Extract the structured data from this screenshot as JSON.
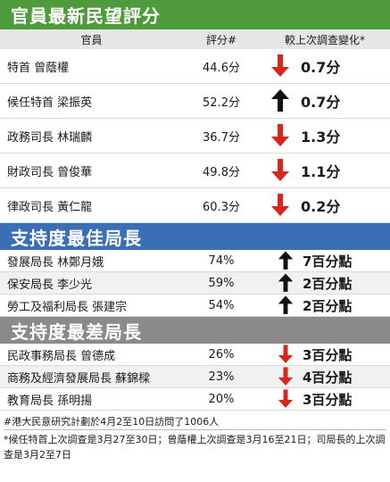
{
  "title": "官員最新民望評分",
  "columns": {
    "name": "官員",
    "score": "評分#",
    "change": "較上次調查變化*"
  },
  "officials": [
    {
      "name": "特首 曾蔭權",
      "score": "44.6分",
      "dir": "down",
      "change": "0.7分"
    },
    {
      "name": "候任特首 梁振英",
      "score": "52.2分",
      "dir": "up",
      "change": "0.7分"
    },
    {
      "name": "政務司長 林瑞麟",
      "score": "36.7分",
      "dir": "down",
      "change": "1.3分"
    },
    {
      "name": "財政司長 曾俊華",
      "score": "49.8分",
      "dir": "down",
      "change": "1.1分"
    },
    {
      "name": "律政司長 黃仁龍",
      "score": "60.3分",
      "dir": "down",
      "change": "0.2分"
    }
  ],
  "best_section": {
    "title": "支持度最佳局長"
  },
  "best": [
    {
      "name": "發展局長 林鄭月娥",
      "score": "74%",
      "dir": "up",
      "change": "7百分點"
    },
    {
      "name": "保安局長 李少光",
      "score": "59%",
      "dir": "up",
      "change": "2百分點"
    },
    {
      "name": "勞工及福利局長 張建宗",
      "score": "54%",
      "dir": "up",
      "change": "2百分點"
    }
  ],
  "worst_section": {
    "title": "支持度最差局長"
  },
  "worst": [
    {
      "name": "民政事務局長 曾德成",
      "score": "26%",
      "dir": "down",
      "change": "3百分點"
    },
    {
      "name": "商務及經濟發展局長 蘇錦樑",
      "score": "23%",
      "dir": "down",
      "change": "4百分點"
    },
    {
      "name": "教育局長 孫明揚",
      "score": "20%",
      "dir": "down",
      "change": "3百分點"
    }
  ],
  "notes": {
    "note1": "#港大民意研究計劃於4月2至10日訪問了1006人",
    "note2": "*候任特首上次調查是3月27至30日；曾蔭權上次調查是3月16至21日；司局長的上次調查是3月2至7日"
  },
  "colors": {
    "green": "#4f9a3b",
    "blue": "#3a6fb6",
    "grey": "#8a8a8a",
    "down_arrow": "#d9261c",
    "up_arrow": "#111111"
  }
}
